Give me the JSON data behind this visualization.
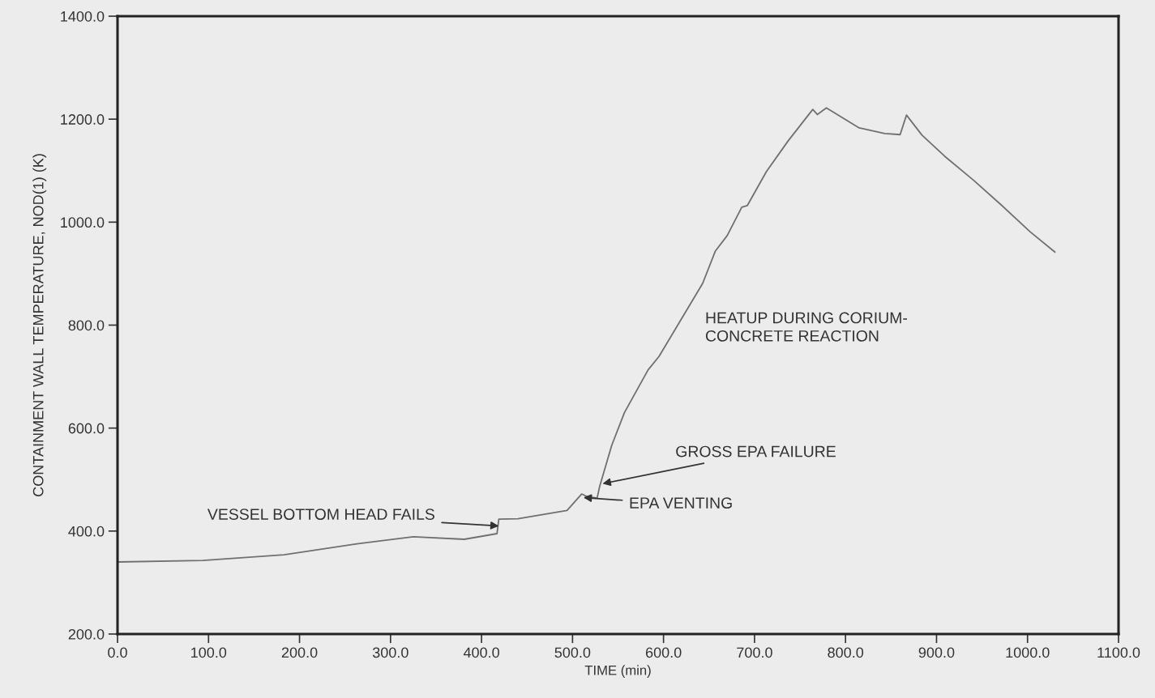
{
  "chart_data": {
    "type": "line",
    "xlabel": "TIME (min)",
    "ylabel": "CONTAINMENT WALL TEMPERATURE, NOD(1) (K)",
    "series": [
      {
        "color": "#707070",
        "x": [
          0,
          94,
          183,
          263,
          325,
          381,
          417,
          419,
          440,
          494,
          510,
          516,
          527,
          530,
          543,
          557,
          583,
          595,
          643,
          657,
          670,
          686,
          692,
          713,
          737,
          764,
          769,
          779,
          815,
          843,
          860,
          867,
          884,
          909,
          941,
          972,
          1003,
          1030
        ],
        "values": [
          340,
          343,
          354,
          375,
          389,
          384,
          395,
          423,
          424,
          440,
          472,
          467,
          464,
          488,
          566,
          630,
          713,
          739,
          881,
          944,
          974,
          1029,
          1032,
          1098,
          1158,
          1219,
          1209,
          1222,
          1183,
          1172,
          1170,
          1208,
          1169,
          1128,
          1081,
          1032,
          981,
          942
        ]
      }
    ],
    "xlim": [
      0,
      1100
    ],
    "ylim": [
      200,
      1400
    ],
    "xticks": [
      {
        "value": 0,
        "label": "0.0"
      },
      {
        "value": 100,
        "label": "100.0"
      },
      {
        "value": 200,
        "label": "200.0"
      },
      {
        "value": 300,
        "label": "300.0"
      },
      {
        "value": 400,
        "label": "400.0"
      },
      {
        "value": 500,
        "label": "500.0"
      },
      {
        "value": 600,
        "label": "600.0"
      },
      {
        "value": 700,
        "label": "700.0"
      },
      {
        "value": 800,
        "label": "800.0"
      },
      {
        "value": 900,
        "label": "900.0"
      },
      {
        "value": 1000,
        "label": "1000.0"
      },
      {
        "value": 1100,
        "label": "1100.0"
      }
    ],
    "yticks": [
      {
        "value": 200,
        "label": "200.0"
      },
      {
        "value": 400,
        "label": "400.0"
      },
      {
        "value": 600,
        "label": "600.0"
      },
      {
        "value": 800,
        "label": "800.0"
      },
      {
        "value": 1000,
        "label": "1000.0"
      },
      {
        "value": 1200,
        "label": "1200.0"
      },
      {
        "value": 1400,
        "label": "1400.0"
      }
    ],
    "grid": false,
    "legend": false,
    "marker": "none",
    "line_style": "solid",
    "annotations": [
      {
        "text": "VESSEL BOTTOM HEAD FAILS",
        "x": 419,
        "y": 410
      },
      {
        "text": "EPA VENTING",
        "x": 512,
        "y": 465
      },
      {
        "text": "GROSS EPA FAILURE",
        "x": 533,
        "y": 492
      },
      "HEATUP DURING CORIUM-\nCONCRETE REACTION"
    ]
  }
}
